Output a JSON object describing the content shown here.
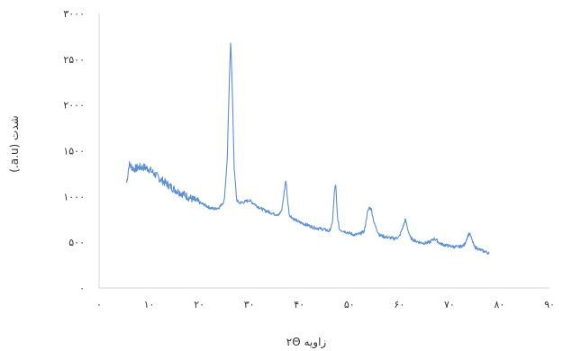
{
  "chart_data": {
    "type": "line",
    "title": "",
    "xlabel": "زاویه ۲Θ",
    "ylabel": "شدت (a.u.)",
    "xlim": [
      0,
      90
    ],
    "ylim": [
      0,
      3000
    ],
    "x_ticks": [
      0,
      10,
      20,
      30,
      40,
      50,
      60,
      70,
      80,
      90
    ],
    "x_tick_labels": [
      "۰",
      "۱۰",
      "۲۰",
      "۳۰",
      "۴۰",
      "۵۰",
      "۶۰",
      "۷۰",
      "۸۰",
      "۹۰"
    ],
    "y_ticks": [
      0,
      500,
      1000,
      1500,
      2000,
      2500,
      3000
    ],
    "y_tick_labels": [
      "۰",
      "۵۰۰",
      "۱۰۰۰",
      "۱۵۰۰",
      "۲۰۰۰",
      "۲۵۰۰",
      "۳۰۰۰"
    ],
    "grid": false,
    "legend": "none",
    "series_color": "#5b8fd0",
    "series": [
      {
        "points": [
          [
            5.5,
            1150
          ],
          [
            6,
            1350
          ],
          [
            7,
            1300
          ],
          [
            8,
            1320
          ],
          [
            9,
            1320
          ],
          [
            10,
            1300
          ],
          [
            11,
            1250
          ],
          [
            12,
            1200
          ],
          [
            13,
            1160
          ],
          [
            14,
            1120
          ],
          [
            15,
            1080
          ],
          [
            16,
            1050
          ],
          [
            17,
            1020
          ],
          [
            18,
            990
          ],
          [
            19,
            960
          ],
          [
            20,
            935
          ],
          [
            21,
            910
          ],
          [
            22,
            880
          ],
          [
            23,
            865
          ],
          [
            24,
            880
          ],
          [
            25,
            950
          ],
          [
            25.6,
            1400
          ],
          [
            26.0,
            2200
          ],
          [
            26.3,
            2720
          ],
          [
            26.6,
            2200
          ],
          [
            27.0,
            1300
          ],
          [
            27.5,
            960
          ],
          [
            28,
            930
          ],
          [
            29,
            940
          ],
          [
            30,
            960
          ],
          [
            31,
            920
          ],
          [
            32,
            880
          ],
          [
            33,
            850
          ],
          [
            34,
            830
          ],
          [
            35,
            810
          ],
          [
            36,
            800
          ],
          [
            36.5,
            850
          ],
          [
            37.0,
            1050
          ],
          [
            37.3,
            1190
          ],
          [
            37.6,
            1000
          ],
          [
            38,
            800
          ],
          [
            39,
            750
          ],
          [
            40,
            720
          ],
          [
            41,
            700
          ],
          [
            42,
            680
          ],
          [
            43,
            660
          ],
          [
            44,
            650
          ],
          [
            45,
            640
          ],
          [
            46,
            620
          ],
          [
            46.6,
            700
          ],
          [
            47.1,
            1100
          ],
          [
            47.3,
            1120
          ],
          [
            47.6,
            800
          ],
          [
            48,
            640
          ],
          [
            49,
            620
          ],
          [
            50,
            600
          ],
          [
            51,
            580
          ],
          [
            52,
            590
          ],
          [
            53,
            620
          ],
          [
            53.6,
            820
          ],
          [
            54.0,
            880
          ],
          [
            54.4,
            860
          ],
          [
            55,
            700
          ],
          [
            56,
            580
          ],
          [
            57,
            560
          ],
          [
            58,
            550
          ],
          [
            59,
            540
          ],
          [
            60,
            560
          ],
          [
            60.8,
            680
          ],
          [
            61.2,
            750
          ],
          [
            61.6,
            660
          ],
          [
            62.2,
            550
          ],
          [
            63,
            520
          ],
          [
            64,
            500
          ],
          [
            65,
            490
          ],
          [
            66,
            500
          ],
          [
            67,
            540
          ],
          [
            67.5,
            520
          ],
          [
            68,
            490
          ],
          [
            69,
            470
          ],
          [
            70,
            460
          ],
          [
            71,
            450
          ],
          [
            72,
            450
          ],
          [
            73,
            470
          ],
          [
            73.6,
            560
          ],
          [
            74.0,
            600
          ],
          [
            74.4,
            540
          ],
          [
            75,
            450
          ],
          [
            76,
            420
          ],
          [
            77,
            400
          ],
          [
            78,
            380
          ]
        ]
      }
    ]
  }
}
